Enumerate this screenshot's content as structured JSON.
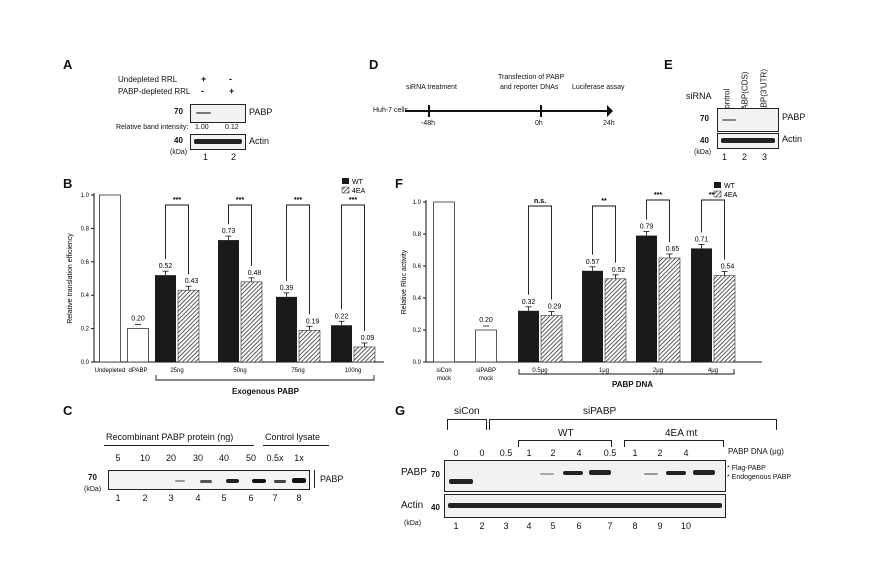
{
  "A": {
    "label": "A",
    "rows": [
      {
        "name": "Undepleted RRL",
        "marks": [
          "+",
          "-"
        ]
      },
      {
        "name": "PABP-depleted RRL",
        "marks": [
          "-",
          "+"
        ]
      }
    ],
    "mw_70": "70",
    "mw_40": "40",
    "kda": "(kDa)",
    "protein_pabp": "PABP",
    "protein_actin": "Actin",
    "intensity_label": "Relative band intensity:",
    "intensity_values": [
      "1.00",
      "0.12"
    ],
    "lanes": [
      "1",
      "2"
    ]
  },
  "B": {
    "label": "B",
    "group_label": "Exogenous PABP",
    "sig": [
      "***",
      "***",
      "***",
      "***"
    ]
  },
  "C": {
    "label": "C",
    "header_recombinant": "Recombinant PABP protein (ng)",
    "header_control": "Control lysate",
    "amounts": [
      "5",
      "10",
      "20",
      "30",
      "40",
      "50",
      "0.5x",
      "1x"
    ],
    "lanes": [
      "1",
      "2",
      "3",
      "4",
      "5",
      "6",
      "7",
      "8"
    ],
    "mw_70": "70",
    "kda": "(kDa)",
    "protein": "PABP"
  },
  "D": {
    "label": "D",
    "steps": [
      "siRNA treatment",
      "Transfection of PABP",
      "and reporter DNAs",
      "Luciferase assay"
    ],
    "cells": "Huh-7 cells",
    "times": [
      "-48h",
      "0h",
      "24h"
    ]
  },
  "E": {
    "label": "E",
    "sirna": "siRNA",
    "conditions": [
      "Control",
      "PABP(CDS)",
      "PABP(3'UTR)"
    ],
    "mw_70": "70",
    "mw_40": "40",
    "kda": "(kDa)",
    "protein_pabp": "PABP",
    "protein_actin": "Actin",
    "lanes": [
      "1",
      "2",
      "3"
    ]
  },
  "F": {
    "label": "F",
    "group_label": "PABP DNA",
    "sig": [
      "n.s.",
      "**",
      "***",
      "***"
    ]
  },
  "G": {
    "label": "G",
    "sicon": "siCon",
    "sipabp": "siPABP",
    "wt": "WT",
    "mt": "4EA mt",
    "dna_label": "PABP DNA (μg)",
    "amounts": [
      "0",
      "0",
      "0.5",
      "1",
      "2",
      "4",
      "0.5",
      "1",
      "2",
      "4"
    ],
    "lanes": [
      "1",
      "2",
      "3",
      "4",
      "5",
      "6",
      "7",
      "8",
      "9",
      "10"
    ],
    "protein_pabp": "PABP",
    "protein_actin": "Actin",
    "mw_70": "70",
    "mw_40": "40",
    "kda": "(kDa)",
    "flag": "* Flag-PABP",
    "endo": "* Endogenous PABP"
  },
  "chart_data": [
    {
      "panel": "B",
      "type": "bar",
      "ylabel": "Relative translation efficiency",
      "ylim": [
        0,
        1.0
      ],
      "yticks": [
        "0.0",
        "0.2",
        "0.4",
        "0.6",
        "0.8",
        "1.0"
      ],
      "categories": [
        "Undepleted",
        "dPABP",
        "25ng",
        "50ng",
        "75ng",
        "100ng"
      ],
      "controls": [
        1.0,
        0.2
      ],
      "control_labels": [
        "",
        "0.20"
      ],
      "series": [
        {
          "name": "WT",
          "values": [
            null,
            null,
            0.52,
            0.73,
            0.39,
            0.22
          ],
          "labels": [
            "",
            "",
            "0.52",
            "0.73",
            "0.39",
            "0.22"
          ]
        },
        {
          "name": "4EA",
          "values": [
            null,
            null,
            0.43,
            0.48,
            0.19,
            0.09
          ],
          "labels": [
            "",
            "",
            "0.43",
            "0.48",
            "0.19",
            "0.09"
          ]
        }
      ],
      "legend": "top-right"
    },
    {
      "panel": "F",
      "type": "bar",
      "ylabel": "Relative Rluc activity",
      "ylim": [
        0,
        1.0
      ],
      "yticks": [
        "0.0",
        "0.2",
        "0.4",
        "0.6",
        "0.8",
        "1.0"
      ],
      "categories": [
        "siCon mock",
        "siPABP mock",
        "0.5μg",
        "1μg",
        "2μg",
        "4μg"
      ],
      "controls": [
        1.0,
        0.2
      ],
      "control_labels": [
        "",
        "0.20"
      ],
      "series": [
        {
          "name": "WT",
          "values": [
            null,
            null,
            0.32,
            0.57,
            0.79,
            0.71
          ],
          "labels": [
            "",
            "",
            "0.32",
            "0.57",
            "0.79",
            "0.71"
          ]
        },
        {
          "name": "4EA",
          "values": [
            null,
            null,
            0.29,
            0.52,
            0.65,
            0.54
          ],
          "labels": [
            "",
            "",
            "0.29",
            "0.52",
            "0.65",
            "0.54"
          ]
        }
      ],
      "legend": "top-right"
    }
  ]
}
